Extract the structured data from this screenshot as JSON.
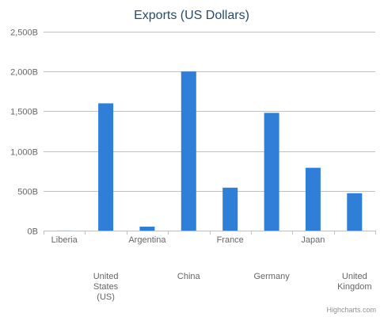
{
  "chart_data": {
    "type": "bar",
    "title": "Exports (US Dollars)",
    "xlabel": "",
    "ylabel": "",
    "categories": [
      "Liberia",
      "United States (US)",
      "Argentina",
      "China",
      "France",
      "Germany",
      "Japan",
      "United Kingdom"
    ],
    "category_lines": [
      [
        "Liberia"
      ],
      [
        "United",
        "States",
        "(US)"
      ],
      [
        "Argentina"
      ],
      [
        "China"
      ],
      [
        "France"
      ],
      [
        "Germany"
      ],
      [
        "Japan"
      ],
      [
        "United",
        "Kingdom"
      ]
    ],
    "values": [
      1,
      1600,
      50,
      2000,
      540,
      1480,
      790,
      470
    ],
    "ylim": [
      0,
      2500
    ],
    "yticks": [
      0,
      500,
      1000,
      1500,
      2000,
      2500
    ],
    "ytick_labels": [
      "0B",
      "500B",
      "1,000B",
      "1,500B",
      "2,000B",
      "2,500B"
    ],
    "grid": true,
    "legend": "none",
    "credits": "Highcharts.com",
    "colors": {
      "bar": "#2f7ed8",
      "grid": "#c0c0c0",
      "title": "#274b6d",
      "tick_label": "#666666",
      "credits": "#909090"
    }
  }
}
